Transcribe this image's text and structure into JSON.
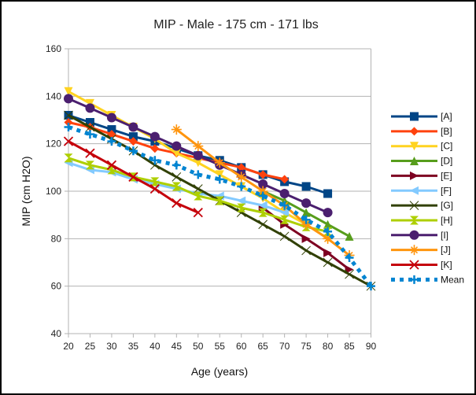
{
  "chart_data": {
    "type": "line",
    "title": "MIP - Male - 175 cm - 171 lbs",
    "xlabel": "Age (years)",
    "ylabel": "MIP (cm H2O)",
    "xlim": [
      20,
      90
    ],
    "ylim": [
      40,
      160
    ],
    "x_ticks": [
      "20",
      "25",
      "30",
      "35",
      "40",
      "45",
      "50",
      "55",
      "60",
      "65",
      "70",
      "75",
      "80",
      "85",
      "90"
    ],
    "y_ticks": [
      "40",
      "60",
      "80",
      "100",
      "120",
      "140",
      "160"
    ],
    "grid": "horizontal",
    "legend_position": "right",
    "series": [
      {
        "name": "[A]",
        "color": "#004586",
        "marker": "square",
        "dashed": false,
        "x": [
          20,
          25,
          30,
          35,
          40,
          45,
          50,
          55,
          60,
          65,
          70,
          75,
          80
        ],
        "y": [
          132,
          129,
          126,
          123,
          121,
          118,
          115,
          113,
          110,
          107,
          104,
          102,
          99
        ]
      },
      {
        "name": "[B]",
        "color": "#ff420e",
        "marker": "diamond",
        "dashed": false,
        "x": [
          20,
          25,
          30,
          35,
          40,
          45,
          50,
          55,
          60,
          65,
          70
        ],
        "y": [
          129,
          127,
          124,
          121,
          118,
          116,
          114,
          112,
          110,
          107,
          105
        ]
      },
      {
        "name": "[C]",
        "color": "#ffd320",
        "marker": "triangle-down",
        "dashed": false,
        "x": [
          20,
          25,
          30,
          35,
          40,
          45,
          50,
          55,
          60,
          65,
          70,
          75,
          80
        ],
        "y": [
          142,
          137,
          132,
          127,
          122,
          116,
          112,
          107,
          102,
          97,
          91,
          86,
          80
        ]
      },
      {
        "name": "[D]",
        "color": "#579d1c",
        "marker": "triangle-up",
        "dashed": false,
        "x": [
          65,
          70,
          75,
          80,
          85
        ],
        "y": [
          100,
          96,
          91,
          86,
          81
        ]
      },
      {
        "name": "[E]",
        "color": "#7e0021",
        "marker": "triangle-right",
        "dashed": false,
        "x": [
          65,
          70,
          75,
          80,
          85
        ],
        "y": [
          93,
          86,
          80,
          74,
          67
        ]
      },
      {
        "name": "[F]",
        "color": "#83caff",
        "marker": "triangle-left",
        "dashed": false,
        "x": [
          20,
          25,
          30,
          35,
          40,
          45,
          50,
          55,
          60,
          65,
          70
        ],
        "y": [
          112,
          109,
          108,
          105,
          103,
          101,
          99,
          98,
          96,
          94,
          91
        ]
      },
      {
        "name": "[G]",
        "color": "#314004",
        "marker": "bowtie",
        "dashed": false,
        "x": [
          20,
          25,
          30,
          35,
          40,
          45,
          50,
          55,
          60,
          65,
          70,
          75,
          80,
          85,
          90
        ],
        "y": [
          132,
          127,
          122,
          117,
          111,
          106,
          101,
          96,
          91,
          86,
          81,
          75,
          70,
          65,
          60
        ]
      },
      {
        "name": "[H]",
        "color": "#aecf00",
        "marker": "hourglass",
        "dashed": false,
        "x": [
          20,
          25,
          30,
          35,
          40,
          45,
          50,
          55,
          60,
          65,
          70,
          75,
          80
        ],
        "y": [
          114,
          111,
          109,
          106,
          104,
          102,
          98,
          96,
          93,
          91,
          88,
          85,
          83
        ]
      },
      {
        "name": "[I]",
        "color": "#4b1f6f",
        "marker": "circle",
        "dashed": false,
        "x": [
          20,
          25,
          30,
          35,
          40,
          45,
          50,
          55,
          60,
          65,
          70,
          75,
          80
        ],
        "y": [
          139,
          135,
          131,
          127,
          123,
          119,
          115,
          111,
          107,
          103,
          99,
          95,
          91
        ]
      },
      {
        "name": "[J]",
        "color": "#ff950e",
        "marker": "star",
        "dashed": false,
        "x": [
          45,
          50,
          55,
          60,
          65,
          70,
          75,
          80,
          85
        ],
        "y": [
          126,
          119,
          112,
          106,
          100,
          94,
          86,
          80,
          73
        ]
      },
      {
        "name": "[K]",
        "color": "#c5000b",
        "marker": "x",
        "dashed": false,
        "x": [
          20,
          25,
          30,
          35,
          40,
          45,
          50
        ],
        "y": [
          121,
          116,
          111,
          106,
          101,
          95,
          91
        ]
      },
      {
        "name": "Mean",
        "color": "#0084d1",
        "marker": "plus",
        "dashed": true,
        "x": [
          20,
          25,
          30,
          35,
          40,
          45,
          50,
          55,
          60,
          65,
          70,
          75,
          80,
          85,
          90
        ],
        "y": [
          127,
          124,
          121,
          117,
          113,
          111,
          107,
          105,
          102,
          98,
          94,
          88,
          83,
          72,
          60
        ]
      }
    ]
  }
}
